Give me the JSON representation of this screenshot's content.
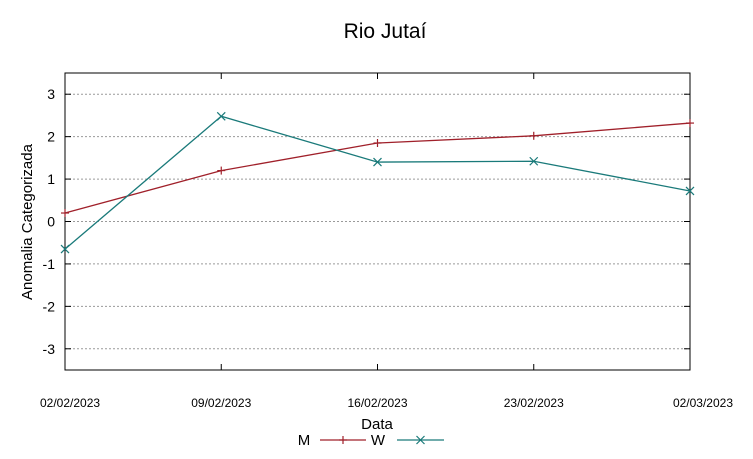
{
  "chart_data": {
    "type": "line",
    "title": "Rio Jutaí",
    "xlabel": "Data",
    "ylabel": "Anomalia Categorizada",
    "x": [
      "02/02/2023",
      "09/02/2023",
      "16/02/2023",
      "23/02/2023",
      "02/03/2023"
    ],
    "y_ticks": [
      "3",
      "2",
      "1",
      "0",
      "-1",
      "-2",
      "-3"
    ],
    "y_tick_values": [
      3,
      2,
      1,
      0,
      -1,
      -2,
      -3
    ],
    "ylim": [
      -3.5,
      3.5
    ],
    "grid": true,
    "legend_position": "bottom-center",
    "series": [
      {
        "name": "M",
        "color": "#a0202a",
        "marker": "plus",
        "values": [
          0.2,
          1.2,
          1.85,
          2.02,
          2.32
        ]
      },
      {
        "name": "W",
        "color": "#1a7a7a",
        "marker": "cross",
        "values": [
          -0.65,
          2.48,
          1.4,
          1.42,
          0.72
        ]
      }
    ]
  }
}
